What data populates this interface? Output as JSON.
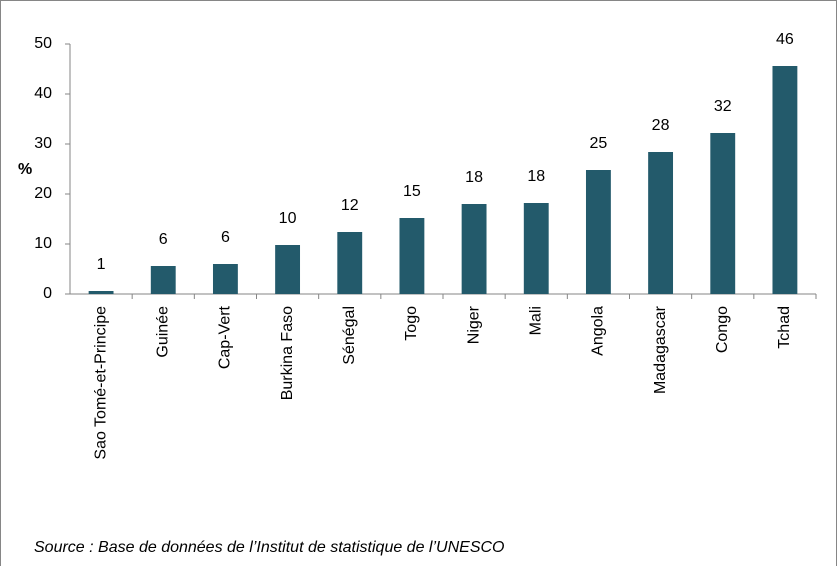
{
  "chart_data": {
    "type": "bar",
    "y_label": "%",
    "categories": [
      "Sao Tomé-et-Principe",
      "Guinée",
      "Cap-Vert",
      "Burkina Faso",
      "Sénégal",
      "Togo",
      "Niger",
      "Mali",
      "Angola",
      "Madagascar",
      "Congo",
      "Tchad"
    ],
    "values": [
      0.6,
      5.6,
      6.0,
      9.8,
      12.4,
      15.2,
      18.0,
      18.2,
      24.8,
      28.4,
      32.2,
      45.6
    ],
    "value_labels": [
      "1",
      "6",
      "6",
      "10",
      "12",
      "15",
      "18",
      "18",
      "25",
      "28",
      "32",
      "46"
    ],
    "color": "#235a6b",
    "ylim": [
      0,
      50
    ],
    "yticks": [
      0,
      10,
      20,
      30,
      40,
      50
    ],
    "grid": false,
    "source": "Source : Base de données de l’Institut de statistique de l’UNESCO"
  }
}
